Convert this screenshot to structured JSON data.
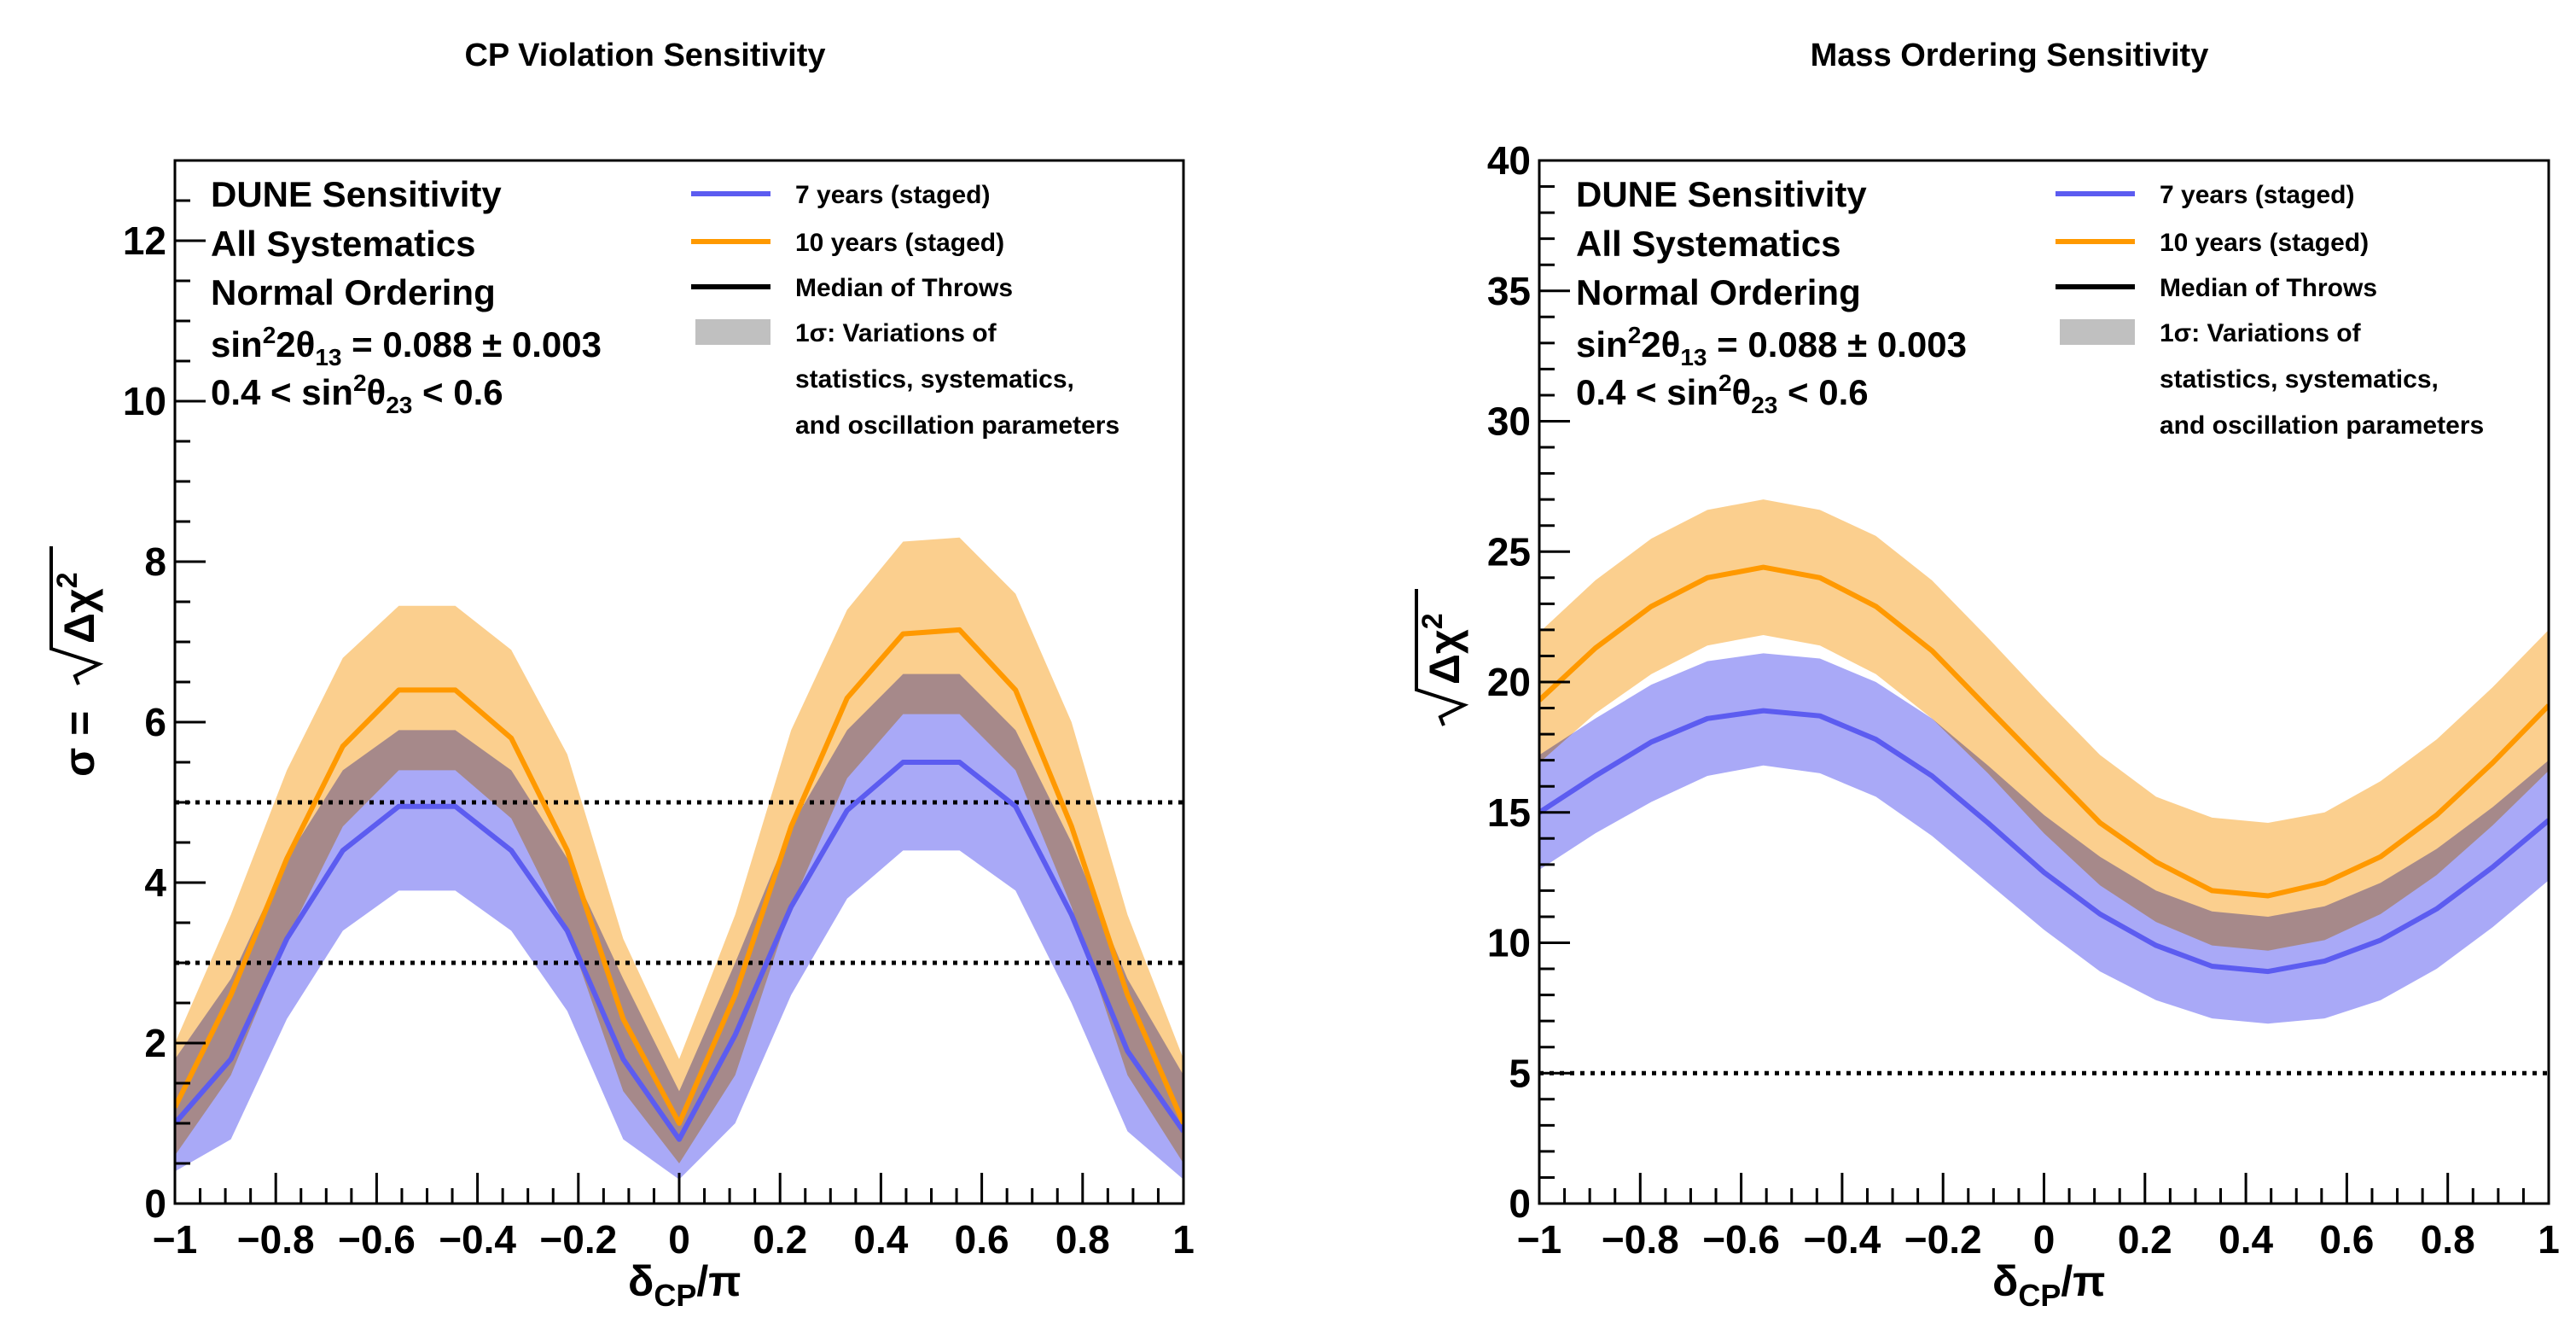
{
  "chart_data": [
    {
      "type": "line",
      "title": "CP Violation Sensitivity",
      "xlabel": {
        "main": "δ",
        "sub": "CP",
        "tail": "/π"
      },
      "ylabel": {
        "prefix": "σ = ",
        "radicand": "Δχ",
        "exp": "2"
      },
      "xlim": [
        -1,
        1
      ],
      "ylim": [
        0,
        13
      ],
      "xticks": [
        -1,
        -0.8,
        -0.6,
        -0.4,
        -0.2,
        0,
        0.2,
        0.4,
        0.6,
        0.8,
        1
      ],
      "xtick_labels": [
        "−1",
        "−0.8",
        "−0.6",
        "−0.4",
        "−0.2",
        "0",
        "0.2",
        "0.4",
        "0.6",
        "0.8",
        "1"
      ],
      "yticks": [
        0,
        2,
        4,
        6,
        8,
        10,
        12
      ],
      "ytick_labels": [
        "0",
        "2",
        "4",
        "6",
        "8",
        "10",
        "12"
      ],
      "annotation": {
        "line1": "DUNE Sensitivity",
        "line2": "All Systematics",
        "line3": "Normal Ordering",
        "line4": {
          "a": "sin",
          "b": "2",
          "c": "2θ",
          "d": "13",
          "e": " = 0.088 ± 0.003"
        },
        "line5": {
          "a": "0.4 < sin",
          "b": "2",
          "c": "θ",
          "d": "23",
          "e": " < 0.6"
        }
      },
      "legend": {
        "position": "top-right",
        "entries": [
          {
            "label": "7 years (staged)",
            "kind": "line",
            "color": "#5c5cf0"
          },
          {
            "label": "10 years (staged)",
            "kind": "line",
            "color": "#ff9900"
          },
          {
            "label": "Median of Throws",
            "kind": "line",
            "color": "#000000"
          },
          {
            "label": "1σ: Variations of",
            "kind": "band",
            "color": "#c0c0c0"
          },
          {
            "label": "statistics, systematics,",
            "kind": "text"
          },
          {
            "label": "and oscillation parameters",
            "kind": "text"
          }
        ]
      },
      "reference_lines": [
        3,
        5
      ],
      "x": [
        -1,
        -0.889,
        -0.778,
        -0.667,
        -0.556,
        -0.444,
        -0.333,
        -0.222,
        -0.111,
        0,
        0.111,
        0.222,
        0.333,
        0.444,
        0.556,
        0.667,
        0.778,
        0.889,
        1
      ],
      "series": [
        {
          "name": "7 years (staged)",
          "color": "#5c5cf0",
          "band_color": "#a9a9f7",
          "median": [
            1.0,
            1.8,
            3.3,
            4.4,
            4.95,
            4.95,
            4.4,
            3.4,
            1.8,
            0.8,
            2.1,
            3.7,
            4.9,
            5.5,
            5.5,
            4.95,
            3.6,
            1.9,
            0.9
          ],
          "low": [
            0.4,
            0.8,
            2.3,
            3.4,
            3.9,
            3.9,
            3.4,
            2.4,
            0.8,
            0.3,
            1.0,
            2.6,
            3.8,
            4.4,
            4.4,
            3.9,
            2.5,
            0.9,
            0.3
          ],
          "high": [
            1.8,
            2.8,
            4.3,
            5.4,
            5.9,
            5.9,
            5.4,
            4.3,
            2.8,
            1.4,
            3.0,
            4.7,
            5.9,
            6.6,
            6.6,
            5.9,
            4.5,
            2.8,
            1.6
          ]
        },
        {
          "name": "10 years (staged)",
          "color": "#ff9900",
          "band_color": "#fac26e",
          "median": [
            1.2,
            2.6,
            4.3,
            5.7,
            6.4,
            6.4,
            5.8,
            4.4,
            2.3,
            1.0,
            2.6,
            4.7,
            6.3,
            7.1,
            7.15,
            6.4,
            4.7,
            2.6,
            1.0
          ],
          "low": [
            0.6,
            1.6,
            3.3,
            4.7,
            5.4,
            5.4,
            4.8,
            3.4,
            1.4,
            0.5,
            1.6,
            3.7,
            5.3,
            6.1,
            6.1,
            5.4,
            3.7,
            1.6,
            0.5
          ],
          "high": [
            2.0,
            3.6,
            5.4,
            6.8,
            7.45,
            7.45,
            6.9,
            5.6,
            3.3,
            1.8,
            3.6,
            5.9,
            7.4,
            8.25,
            8.3,
            7.6,
            6.0,
            3.6,
            1.8
          ]
        }
      ]
    },
    {
      "type": "line",
      "title": "Mass Ordering Sensitivity",
      "xlabel": {
        "main": "δ",
        "sub": "CP",
        "tail": "/π"
      },
      "ylabel": {
        "prefix": "",
        "radicand": "Δχ",
        "exp": "2"
      },
      "xlim": [
        -1,
        1
      ],
      "ylim": [
        0,
        40
      ],
      "xticks": [
        -1,
        -0.8,
        -0.6,
        -0.4,
        -0.2,
        0,
        0.2,
        0.4,
        0.6,
        0.8,
        1
      ],
      "xtick_labels": [
        "−1",
        "−0.8",
        "−0.6",
        "−0.4",
        "−0.2",
        "0",
        "0.2",
        "0.4",
        "0.6",
        "0.8",
        "1"
      ],
      "yticks": [
        0,
        5,
        10,
        15,
        20,
        25,
        30,
        35,
        40
      ],
      "ytick_labels": [
        "0",
        "5",
        "10",
        "15",
        "20",
        "25",
        "30",
        "35",
        "40"
      ],
      "annotation": {
        "line1": "DUNE Sensitivity",
        "line2": "All Systematics",
        "line3": "Normal Ordering",
        "line4": {
          "a": "sin",
          "b": "2",
          "c": "2θ",
          "d": "13",
          "e": " = 0.088 ± 0.003"
        },
        "line5": {
          "a": "0.4 < sin",
          "b": "2",
          "c": "θ",
          "d": "23",
          "e": " < 0.6"
        }
      },
      "legend": {
        "position": "top-right",
        "entries": [
          {
            "label": "7 years (staged)",
            "kind": "line",
            "color": "#5c5cf0"
          },
          {
            "label": "10 years (staged)",
            "kind": "line",
            "color": "#ff9900"
          },
          {
            "label": "Median of Throws",
            "kind": "line",
            "color": "#000000"
          },
          {
            "label": "1σ: Variations of",
            "kind": "band",
            "color": "#c0c0c0"
          },
          {
            "label": "statistics, systematics,",
            "kind": "text"
          },
          {
            "label": "and oscillation parameters",
            "kind": "text"
          }
        ]
      },
      "reference_lines": [
        5
      ],
      "x": [
        -1,
        -0.889,
        -0.778,
        -0.667,
        -0.556,
        -0.444,
        -0.333,
        -0.222,
        -0.111,
        0,
        0.111,
        0.222,
        0.333,
        0.444,
        0.556,
        0.667,
        0.778,
        0.889,
        1
      ],
      "series": [
        {
          "name": "7 years (staged)",
          "color": "#5c5cf0",
          "band_color": "#a9a9f7",
          "median": [
            15.0,
            16.4,
            17.7,
            18.6,
            18.9,
            18.7,
            17.8,
            16.4,
            14.6,
            12.7,
            11.1,
            9.9,
            9.1,
            8.9,
            9.3,
            10.1,
            11.3,
            12.9,
            14.7
          ],
          "low": [
            12.8,
            14.2,
            15.4,
            16.4,
            16.8,
            16.5,
            15.6,
            14.1,
            12.3,
            10.5,
            8.9,
            7.8,
            7.1,
            6.9,
            7.1,
            7.8,
            9.0,
            10.6,
            12.4
          ],
          "high": [
            17.2,
            18.6,
            19.9,
            20.8,
            21.1,
            20.9,
            20.0,
            18.6,
            16.8,
            14.9,
            13.3,
            12.0,
            11.2,
            11.0,
            11.4,
            12.3,
            13.6,
            15.2,
            17.0
          ]
        },
        {
          "name": "10 years (staged)",
          "color": "#ff9900",
          "band_color": "#fac26e",
          "median": [
            19.3,
            21.3,
            22.9,
            24.0,
            24.4,
            24.0,
            22.9,
            21.2,
            19.0,
            16.8,
            14.6,
            13.1,
            12.0,
            11.8,
            12.3,
            13.3,
            14.9,
            16.9,
            19.1
          ],
          "low": [
            16.9,
            18.8,
            20.3,
            21.4,
            21.8,
            21.4,
            20.3,
            18.6,
            16.5,
            14.2,
            12.2,
            10.8,
            9.9,
            9.7,
            10.1,
            11.1,
            12.6,
            14.5,
            16.6
          ],
          "high": [
            21.9,
            23.9,
            25.5,
            26.6,
            27.0,
            26.6,
            25.6,
            23.9,
            21.7,
            19.4,
            17.2,
            15.6,
            14.8,
            14.6,
            15.0,
            16.2,
            17.8,
            19.8,
            22.0
          ]
        }
      ]
    }
  ]
}
